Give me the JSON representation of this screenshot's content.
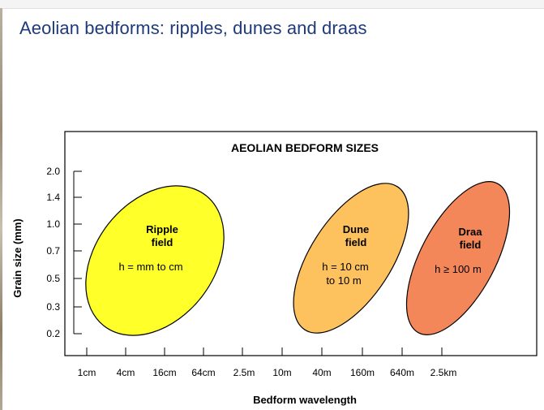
{
  "slide": {
    "title": "Aeolian bedforms: ripples, dunes and draas"
  },
  "chart": {
    "title": "AEOLIAN BEDFORM SIZES",
    "ylabel": "Grain size (mm)",
    "xlabel": "Bedform wavelength",
    "y_ticks": [
      "2.0",
      "1.4",
      "1.0",
      "0.7",
      "0.5",
      "0.3",
      "0.2"
    ],
    "x_ticks": [
      "1cm",
      "4cm",
      "16cm",
      "64cm",
      "2.5m",
      "10m",
      "40m",
      "160m",
      "640m",
      "2.5km"
    ],
    "fields": [
      {
        "key": "ripple",
        "name_line1": "Ripple",
        "name_line2": "field",
        "height_line1": "h = mm to cm",
        "height_line2": "",
        "color": "#ffff2a"
      },
      {
        "key": "dune",
        "name_line1": "Dune",
        "name_line2": "field",
        "height_line1": "h = 10 cm",
        "height_line2": "to 10 m",
        "color": "#fdc25e"
      },
      {
        "key": "draa",
        "name_line1": "Draa",
        "name_line2": "field",
        "height_line1": "h ≥ 100 m",
        "height_line2": "",
        "color": "#f4875a"
      }
    ]
  },
  "colors": {
    "title_blue": "#1f3a7a",
    "outline": "#000000",
    "left_strip": "#a89a80"
  }
}
